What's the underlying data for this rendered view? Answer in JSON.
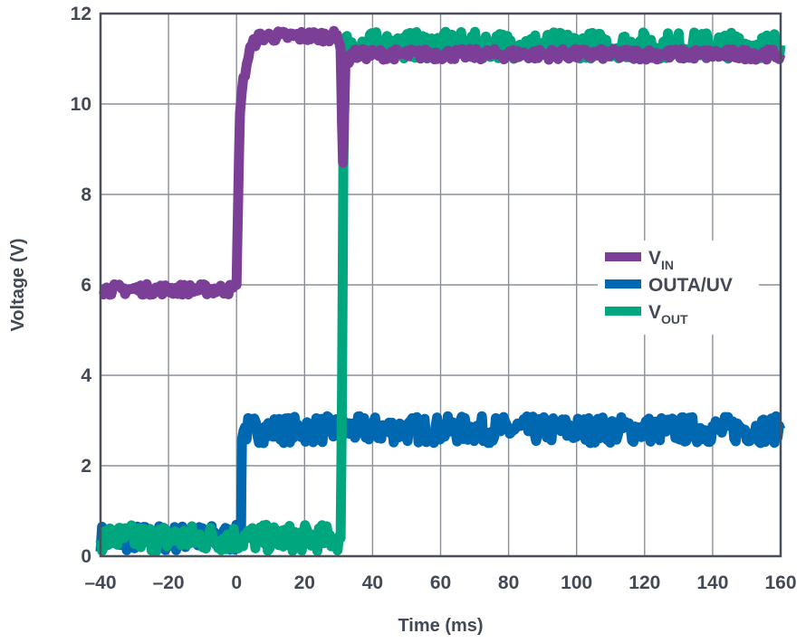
{
  "chart_data": {
    "type": "line",
    "title": "",
    "xlabel": "Time (ms)",
    "ylabel": "Voltage (V)",
    "xlim": [
      -40,
      160
    ],
    "ylim": [
      0,
      12
    ],
    "x_ticks": [
      -40,
      -20,
      0,
      20,
      40,
      60,
      80,
      100,
      120,
      140,
      160
    ],
    "x_tick_labels": [
      "–40",
      "–20",
      "0",
      "20",
      "40",
      "60",
      "80",
      "100",
      "120",
      "140",
      "160"
    ],
    "y_ticks": [
      0,
      2,
      4,
      6,
      8,
      10,
      12
    ],
    "y_tick_labels": [
      "0",
      "2",
      "4",
      "6",
      "8",
      "10",
      "12"
    ],
    "grid": true,
    "legend_position": "right-middle",
    "series": [
      {
        "name": "V",
        "name_sub": "IN",
        "color": "#7b3f98",
        "noise": 0.12,
        "x": [
          -40,
          -1,
          0,
          0.5,
          1,
          2,
          3,
          4,
          6,
          8,
          10,
          30,
          30.6,
          31,
          31.3,
          32,
          34,
          40,
          160
        ],
        "y": [
          5.9,
          5.9,
          6.0,
          8.0,
          9.9,
          10.5,
          10.9,
          11.2,
          11.45,
          11.5,
          11.5,
          11.5,
          11.2,
          9.6,
          8.7,
          10.9,
          11.1,
          11.1,
          11.1
        ]
      },
      {
        "name": "OUTA/UV",
        "color": "#0067b1",
        "noise": 0.3,
        "x": [
          -40,
          1.3,
          1.6,
          160
        ],
        "y": [
          0.4,
          0.4,
          2.8,
          2.8
        ]
      },
      {
        "name": "V",
        "name_sub": "OUT",
        "color": "#00a77e",
        "noise": 0.3,
        "x": [
          -40,
          30.6,
          31,
          31.4,
          32,
          160
        ],
        "y": [
          0.4,
          0.4,
          3.5,
          8.6,
          11.3,
          11.3
        ]
      }
    ]
  }
}
